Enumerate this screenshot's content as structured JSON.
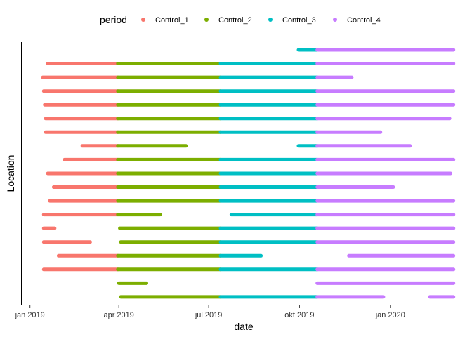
{
  "chart_data": {
    "type": "timeline",
    "xlabel": "date",
    "ylabel": "Location",
    "legend": {
      "title": "period",
      "placement": "top",
      "entries": [
        {
          "name": "Control_1",
          "color": "#F8766D"
        },
        {
          "name": "Control_2",
          "color": "#7CAE00"
        },
        {
          "name": "Control_3",
          "color": "#00BFC4"
        },
        {
          "name": "Control_4",
          "color": "#C77CFF"
        }
      ]
    },
    "x_range": [
      "2018-12-23",
      "2020-03-18"
    ],
    "x_ticks": [
      {
        "date": "2019-01-01",
        "label": "jan 2019"
      },
      {
        "date": "2019-04-01",
        "label": "apr 2019"
      },
      {
        "date": "2019-07-01",
        "label": "jul 2019"
      },
      {
        "date": "2019-10-01",
        "label": "okt 2019"
      },
      {
        "date": "2020-01-01",
        "label": "jan 2020"
      }
    ],
    "grid": false,
    "y_ticks_shown": false,
    "rows": [
      {
        "segments": [
          {
            "period": "Control_3",
            "start": "2019-09-30",
            "end": "2019-10-19"
          },
          {
            "period": "Control_4",
            "start": "2019-10-19",
            "end": "2020-03-05"
          }
        ]
      },
      {
        "segments": [
          {
            "period": "Control_1",
            "start": "2019-01-19",
            "end": "2019-03-31"
          },
          {
            "period": "Control_2",
            "start": "2019-03-31",
            "end": "2019-07-13"
          },
          {
            "period": "Control_3",
            "start": "2019-07-13",
            "end": "2019-10-19"
          },
          {
            "period": "Control_4",
            "start": "2019-10-19",
            "end": "2020-03-05"
          }
        ]
      },
      {
        "segments": [
          {
            "period": "Control_1",
            "start": "2019-01-14",
            "end": "2019-03-31"
          },
          {
            "period": "Control_2",
            "start": "2019-03-31",
            "end": "2019-07-13"
          },
          {
            "period": "Control_3",
            "start": "2019-07-13",
            "end": "2019-10-19"
          },
          {
            "period": "Control_4",
            "start": "2019-10-19",
            "end": "2019-11-23"
          }
        ]
      },
      {
        "segments": [
          {
            "period": "Control_1",
            "start": "2019-01-15",
            "end": "2019-03-31"
          },
          {
            "period": "Control_2",
            "start": "2019-03-31",
            "end": "2019-07-13"
          },
          {
            "period": "Control_3",
            "start": "2019-07-13",
            "end": "2019-10-19"
          },
          {
            "period": "Control_4",
            "start": "2019-10-19",
            "end": "2020-03-05"
          }
        ]
      },
      {
        "segments": [
          {
            "period": "Control_1",
            "start": "2019-01-16",
            "end": "2019-03-31"
          },
          {
            "period": "Control_2",
            "start": "2019-03-31",
            "end": "2019-07-13"
          },
          {
            "period": "Control_3",
            "start": "2019-07-13",
            "end": "2019-10-19"
          },
          {
            "period": "Control_4",
            "start": "2019-10-19",
            "end": "2020-03-05"
          }
        ]
      },
      {
        "segments": [
          {
            "period": "Control_1",
            "start": "2019-01-17",
            "end": "2019-03-31"
          },
          {
            "period": "Control_2",
            "start": "2019-03-31",
            "end": "2019-07-13"
          },
          {
            "period": "Control_3",
            "start": "2019-07-13",
            "end": "2019-10-19"
          },
          {
            "period": "Control_4",
            "start": "2019-10-19",
            "end": "2020-03-01"
          }
        ]
      },
      {
        "segments": [
          {
            "period": "Control_1",
            "start": "2019-01-17",
            "end": "2019-03-31"
          },
          {
            "period": "Control_2",
            "start": "2019-03-31",
            "end": "2019-07-13"
          },
          {
            "period": "Control_3",
            "start": "2019-07-13",
            "end": "2019-10-19"
          },
          {
            "period": "Control_4",
            "start": "2019-10-19",
            "end": "2019-12-22"
          }
        ]
      },
      {
        "segments": [
          {
            "period": "Control_1",
            "start": "2019-02-23",
            "end": "2019-03-31"
          },
          {
            "period": "Control_2",
            "start": "2019-03-31",
            "end": "2019-06-08"
          },
          {
            "period": "Control_3",
            "start": "2019-09-30",
            "end": "2019-10-19"
          },
          {
            "period": "Control_4",
            "start": "2019-10-19",
            "end": "2020-01-21"
          }
        ]
      },
      {
        "segments": [
          {
            "period": "Control_1",
            "start": "2019-02-05",
            "end": "2019-03-31"
          },
          {
            "period": "Control_2",
            "start": "2019-03-31",
            "end": "2019-07-13"
          },
          {
            "period": "Control_3",
            "start": "2019-07-13",
            "end": "2019-10-19"
          },
          {
            "period": "Control_4",
            "start": "2019-10-19",
            "end": "2020-03-05"
          }
        ]
      },
      {
        "segments": [
          {
            "period": "Control_1",
            "start": "2019-01-19",
            "end": "2019-03-31"
          },
          {
            "period": "Control_2",
            "start": "2019-03-31",
            "end": "2019-07-13"
          },
          {
            "period": "Control_3",
            "start": "2019-07-13",
            "end": "2019-10-19"
          },
          {
            "period": "Control_4",
            "start": "2019-10-19",
            "end": "2020-03-02"
          }
        ]
      },
      {
        "segments": [
          {
            "period": "Control_1",
            "start": "2019-01-25",
            "end": "2019-03-31"
          },
          {
            "period": "Control_2",
            "start": "2019-03-31",
            "end": "2019-07-13"
          },
          {
            "period": "Control_3",
            "start": "2019-07-13",
            "end": "2019-10-19"
          },
          {
            "period": "Control_4",
            "start": "2019-10-19",
            "end": "2020-01-04"
          }
        ]
      },
      {
        "segments": [
          {
            "period": "Control_1",
            "start": "2019-01-21",
            "end": "2019-03-31"
          },
          {
            "period": "Control_2",
            "start": "2019-03-31",
            "end": "2019-07-13"
          },
          {
            "period": "Control_3",
            "start": "2019-07-13",
            "end": "2019-10-19"
          },
          {
            "period": "Control_4",
            "start": "2019-10-19",
            "end": "2020-03-05"
          }
        ]
      },
      {
        "segments": [
          {
            "period": "Control_1",
            "start": "2019-01-15",
            "end": "2019-03-31"
          },
          {
            "period": "Control_2",
            "start": "2019-03-31",
            "end": "2019-05-13"
          },
          {
            "period": "Control_3",
            "start": "2019-07-24",
            "end": "2019-10-19"
          },
          {
            "period": "Control_4",
            "start": "2019-10-19",
            "end": "2020-03-05"
          }
        ]
      },
      {
        "segments": [
          {
            "period": "Control_1",
            "start": "2019-01-15",
            "end": "2019-01-26"
          },
          {
            "period": "Control_2",
            "start": "2019-04-02",
            "end": "2019-07-13"
          },
          {
            "period": "Control_3",
            "start": "2019-07-13",
            "end": "2019-10-19"
          },
          {
            "period": "Control_4",
            "start": "2019-10-19",
            "end": "2020-03-05"
          }
        ]
      },
      {
        "segments": [
          {
            "period": "Control_1",
            "start": "2019-01-15",
            "end": "2019-03-03"
          },
          {
            "period": "Control_2",
            "start": "2019-04-03",
            "end": "2019-07-13"
          },
          {
            "period": "Control_3",
            "start": "2019-07-13",
            "end": "2019-10-19"
          },
          {
            "period": "Control_4",
            "start": "2019-10-19",
            "end": "2020-03-05"
          }
        ]
      },
      {
        "segments": [
          {
            "period": "Control_1",
            "start": "2019-01-30",
            "end": "2019-03-31"
          },
          {
            "period": "Control_2",
            "start": "2019-03-31",
            "end": "2019-07-13"
          },
          {
            "period": "Control_3",
            "start": "2019-07-13",
            "end": "2019-08-23"
          },
          {
            "period": "Control_4",
            "start": "2019-11-20",
            "end": "2020-03-05"
          }
        ]
      },
      {
        "segments": [
          {
            "period": "Control_1",
            "start": "2019-01-15",
            "end": "2019-03-31"
          },
          {
            "period": "Control_2",
            "start": "2019-03-31",
            "end": "2019-07-13"
          },
          {
            "period": "Control_3",
            "start": "2019-07-13",
            "end": "2019-10-19"
          },
          {
            "period": "Control_4",
            "start": "2019-10-19",
            "end": "2020-03-05"
          }
        ]
      },
      {
        "segments": [
          {
            "period": "Control_2",
            "start": "2019-04-01",
            "end": "2019-04-29"
          },
          {
            "period": "Control_4",
            "start": "2019-10-19",
            "end": "2020-03-05"
          }
        ]
      },
      {
        "segments": [
          {
            "period": "Control_2",
            "start": "2019-04-03",
            "end": "2019-07-13"
          },
          {
            "period": "Control_3",
            "start": "2019-07-13",
            "end": "2019-10-19"
          },
          {
            "period": "Control_4",
            "start": "2019-10-19",
            "end": "2019-12-25"
          },
          {
            "period": "Control_4",
            "start": "2020-02-10",
            "end": "2020-03-05"
          }
        ]
      }
    ]
  }
}
